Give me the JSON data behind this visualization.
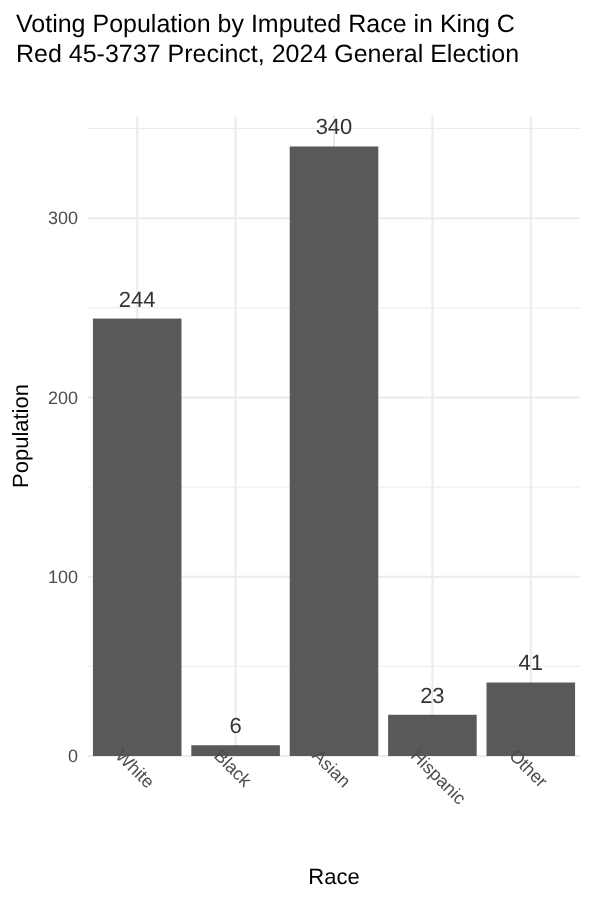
{
  "chart_data": {
    "type": "bar",
    "title": "Voting Population by Imputed Race in King C",
    "subtitle": "Red 45-3737 Precinct,  2024 General Election",
    "xlabel": "Race",
    "ylabel": "Population",
    "categories": [
      "White",
      "Black",
      "Asian",
      "Hispanic",
      "Other"
    ],
    "values": [
      244,
      6,
      340,
      23,
      41
    ],
    "color": "#595959",
    "data_labels": true,
    "ylim": [
      0,
      357
    ],
    "yticks": [
      0,
      {
        "value": 50,
        "label": null
      },
      100,
      {
        "value": 150,
        "label": null
      },
      200,
      {
        "value": 250,
        "label": null
      },
      300,
      {
        "value": 350,
        "label": null
      }
    ],
    "grid": true
  }
}
